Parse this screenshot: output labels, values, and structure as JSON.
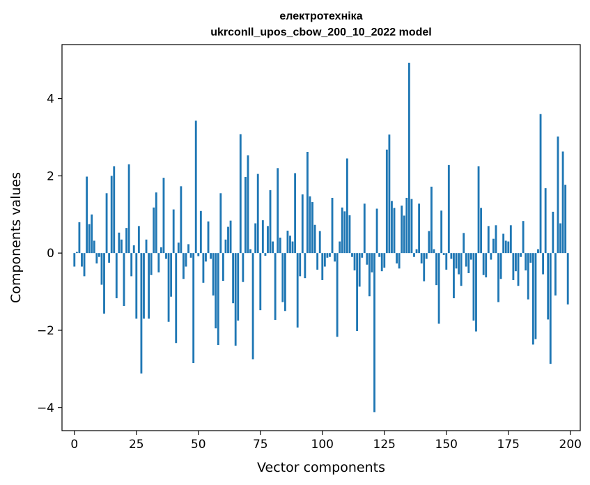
{
  "chart_data": {
    "type": "bar",
    "title": "електротехніка",
    "subtitle": "ukrconll_upos_cbow_200_10_2022 model",
    "xlabel": "Vector components",
    "ylabel": "Components values",
    "xlim": [
      -5,
      204
    ],
    "ylim": [
      -4.6,
      5.4
    ],
    "xticks": [
      0,
      25,
      50,
      75,
      100,
      125,
      150,
      175,
      200
    ],
    "yticks": [
      -4,
      -2,
      0,
      2,
      4
    ],
    "xtick_labels": [
      "0",
      "25",
      "50",
      "75",
      "100",
      "125",
      "150",
      "175",
      "200"
    ],
    "ytick_labels": [
      "−4",
      "−2",
      "0",
      "2",
      "4"
    ],
    "grid": false,
    "color": "#1f77b4",
    "values": [
      -0.35,
      0.03,
      0.8,
      -0.35,
      -0.6,
      1.98,
      0.75,
      1.0,
      0.32,
      -0.27,
      -0.1,
      -0.82,
      -1.57,
      1.55,
      -0.25,
      2.0,
      2.25,
      -1.17,
      0.53,
      0.35,
      -1.37,
      0.65,
      2.3,
      -0.6,
      0.2,
      -1.7,
      0.7,
      -3.12,
      -1.7,
      0.35,
      -1.7,
      -0.57,
      1.18,
      1.57,
      -0.5,
      0.15,
      1.95,
      -0.15,
      -1.78,
      -1.13,
      1.13,
      -2.33,
      0.27,
      1.73,
      -0.67,
      -0.35,
      0.23,
      -0.12,
      -2.85,
      3.43,
      -0.08,
      1.09,
      -0.77,
      -0.22,
      0.82,
      -0.15,
      -1.1,
      -1.95,
      -2.38,
      1.55,
      -0.72,
      0.35,
      0.68,
      0.84,
      -1.3,
      -2.4,
      -1.75,
      3.08,
      -0.75,
      1.97,
      2.53,
      0.1,
      -2.75,
      0.77,
      2.05,
      -1.48,
      0.85,
      -0.07,
      0.7,
      1.63,
      0.3,
      -1.73,
      2.2,
      0.4,
      -1.27,
      -1.5,
      0.58,
      0.45,
      0.3,
      2.07,
      -1.93,
      -0.6,
      1.52,
      -0.65,
      2.62,
      1.47,
      1.32,
      0.73,
      -0.43,
      0.57,
      -0.7,
      -0.35,
      -0.12,
      -0.1,
      1.43,
      -0.22,
      -2.17,
      0.3,
      1.18,
      1.08,
      2.45,
      0.98,
      -0.1,
      -0.45,
      -2.02,
      -0.87,
      -0.12,
      1.28,
      -0.3,
      -1.12,
      -0.5,
      -4.12,
      1.15,
      -0.1,
      -0.47,
      -0.38,
      2.68,
      3.07,
      1.35,
      1.17,
      -0.27,
      -0.4,
      1.23,
      0.97,
      1.43,
      4.93,
      1.4,
      -0.1,
      0.1,
      1.28,
      -0.27,
      -0.73,
      -0.15,
      0.57,
      1.72,
      0.1,
      -0.83,
      -1.83,
      1.1,
      -0.05,
      -0.43,
      2.28,
      -0.15,
      -1.17,
      -0.4,
      -0.55,
      -0.85,
      0.52,
      -0.35,
      -0.52,
      -0.17,
      -1.75,
      -2.03,
      2.25,
      1.17,
      -0.57,
      -0.63,
      0.7,
      -0.17,
      0.37,
      0.72,
      -1.27,
      -0.67,
      0.5,
      0.32,
      0.3,
      0.72,
      -0.7,
      -0.47,
      -0.85,
      -0.1,
      0.83,
      -0.45,
      -1.2,
      -0.25,
      -2.37,
      -2.23,
      0.1,
      3.6,
      -0.55,
      1.68,
      -1.72,
      -2.87,
      1.07,
      -1.1,
      3.02,
      0.77,
      2.63,
      1.77,
      -1.33
    ]
  }
}
